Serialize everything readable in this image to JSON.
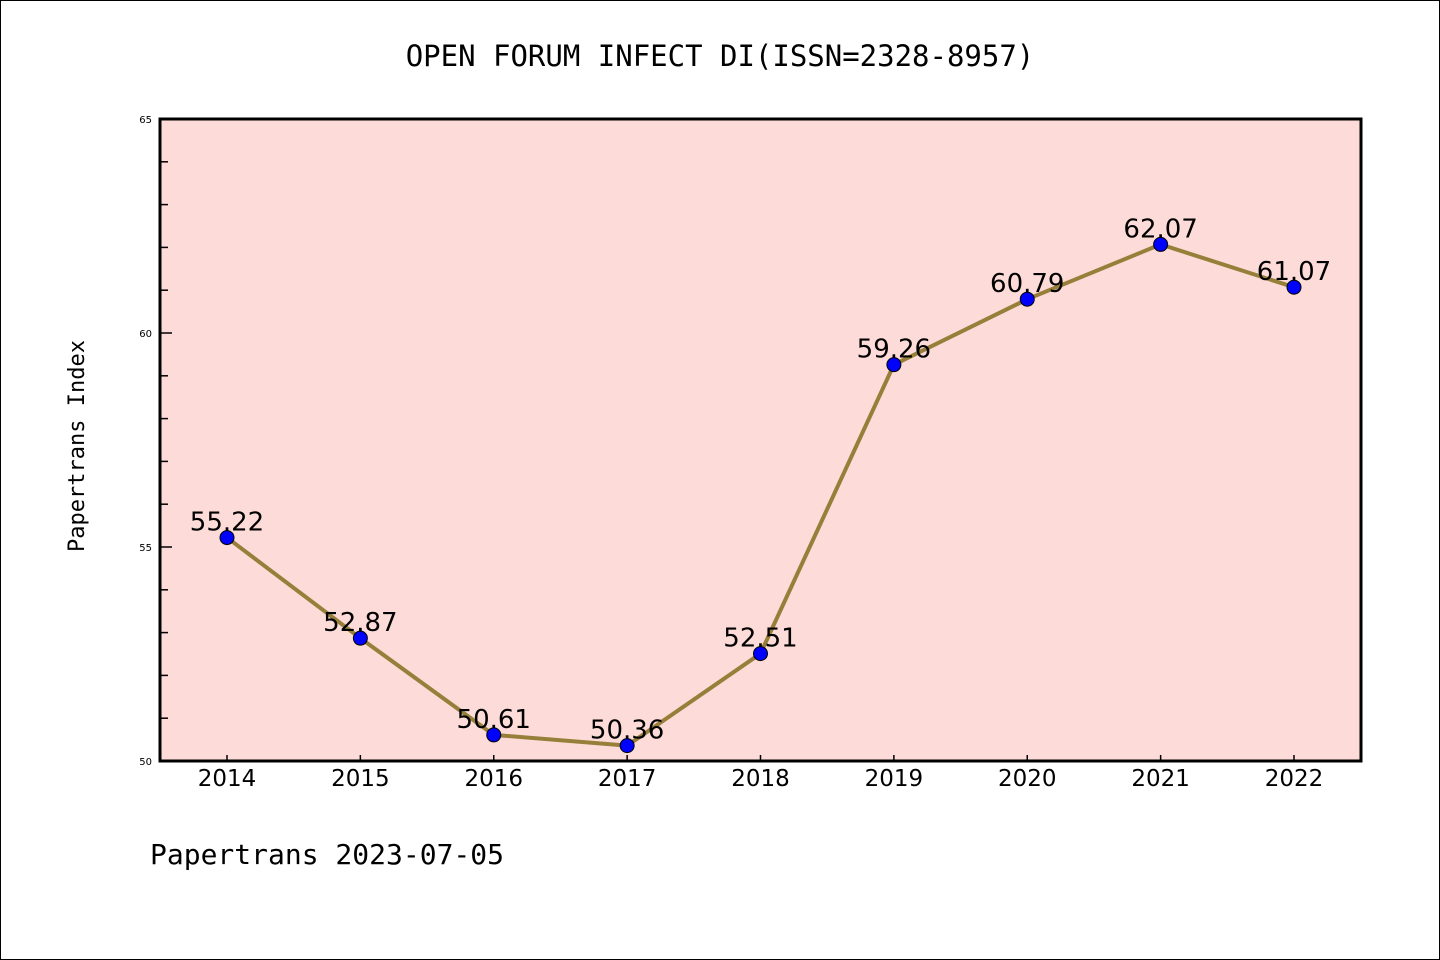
{
  "chart_data": {
    "type": "line",
    "title": "OPEN FORUM INFECT DI(ISSN=2328-8957)",
    "xlabel": "",
    "ylabel": "Papertrans Index",
    "categories": [
      "2014",
      "2015",
      "2016",
      "2017",
      "2018",
      "2019",
      "2020",
      "2021",
      "2022"
    ],
    "values": [
      55.22,
      52.87,
      50.61,
      50.36,
      52.51,
      59.26,
      60.79,
      62.07,
      61.07
    ],
    "data_labels": [
      "55.22",
      "52.87",
      "50.61",
      "50.36",
      "52.51",
      "59.26",
      "60.79",
      "62.07",
      "61.07"
    ],
    "ylim": [
      50,
      65
    ],
    "yticks": [
      "50",
      "55",
      "60",
      "65"
    ],
    "grid": false,
    "footer": "Papertrans 2023-07-05",
    "colors": {
      "background": "#fddbd8",
      "line": "#977f3a",
      "marker": "#0000ff"
    }
  }
}
